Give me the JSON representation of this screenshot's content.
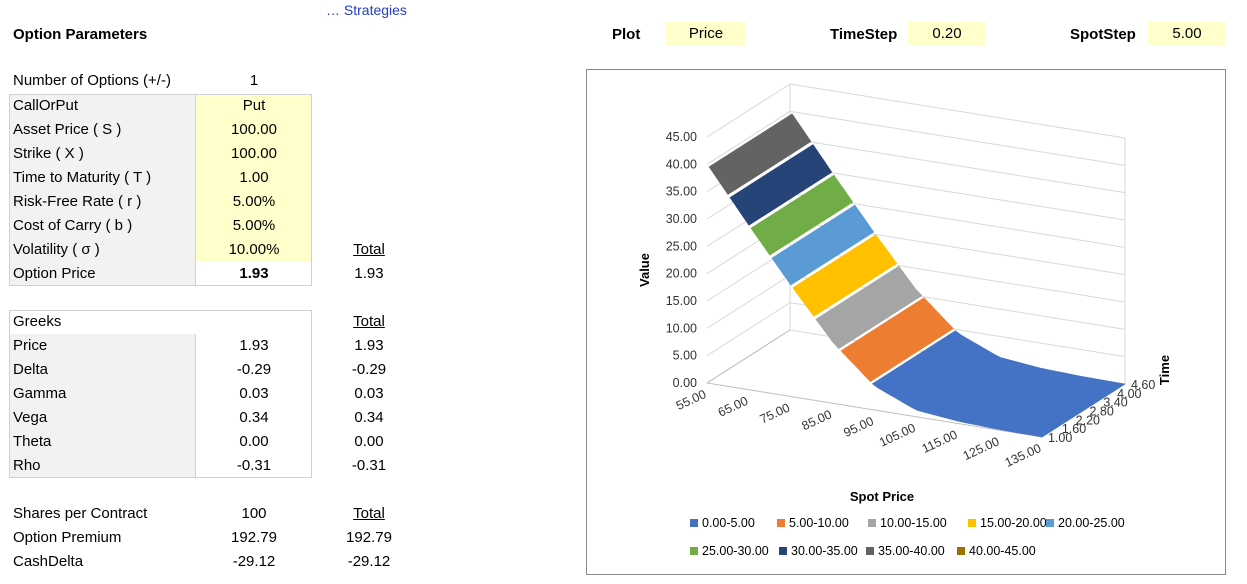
{
  "strategies_link": "… Strategies",
  "section_title": "Option Parameters",
  "header": {
    "plot_label": "Plot",
    "plot_value": "Price",
    "timestep_label": "TimeStep",
    "timestep_value": "0.20",
    "spotstep_label": "SpotStep",
    "spotstep_value": "5.00"
  },
  "params": {
    "num_options_label": "Number of Options (+/-)",
    "num_options_value": "1",
    "rows": [
      {
        "label": "CallOrPut",
        "value": "Put"
      },
      {
        "label": "Asset Price ( S )",
        "value": "100.00"
      },
      {
        "label": "Strike ( X )",
        "value": "100.00"
      },
      {
        "label": "Time to Maturity ( T )",
        "value": "1.00"
      },
      {
        "label": "Risk-Free Rate ( r )",
        "value": "5.00%"
      },
      {
        "label": "Cost of Carry ( b )",
        "value": "5.00%"
      },
      {
        "label": "Volatility ( σ )",
        "value": "10.00%"
      }
    ],
    "total_header": "Total",
    "option_price_label": "Option Price",
    "option_price_value": "1.93",
    "option_price_total": "1.93"
  },
  "greeks": {
    "title": "Greeks",
    "total_header": "Total",
    "rows": [
      {
        "label": "Price",
        "value": "1.93",
        "total": "1.93"
      },
      {
        "label": "Delta",
        "value": "-0.29",
        "total": "-0.29"
      },
      {
        "label": "Gamma",
        "value": "0.03",
        "total": "0.03"
      },
      {
        "label": "Vega",
        "value": "0.34",
        "total": "0.34"
      },
      {
        "label": "Theta",
        "value": "0.00",
        "total": "0.00"
      },
      {
        "label": "Rho",
        "value": "-0.31",
        "total": "-0.31"
      }
    ]
  },
  "contract": {
    "total_header": "Total",
    "rows": [
      {
        "label": "Shares per Contract",
        "value": "100",
        "total": ""
      },
      {
        "label": "Option Premium",
        "value": "192.79",
        "total": "192.79"
      },
      {
        "label": "CashDelta",
        "value": "-29.12",
        "total": "-29.12"
      }
    ]
  },
  "chart_data": {
    "type": "surface",
    "xlabel": "Spot Price",
    "ylabel": "Value",
    "zlabel": "Time",
    "x_ticks": [
      "55.00",
      "65.00",
      "75.00",
      "85.00",
      "95.00",
      "105.00",
      "115.00",
      "125.00",
      "135.00"
    ],
    "y_ticks": [
      "0.00",
      "5.00",
      "10.00",
      "15.00",
      "20.00",
      "25.00",
      "30.00",
      "35.00",
      "40.00",
      "45.00"
    ],
    "z_ticks": [
      "1.00",
      "1.60",
      "2.20",
      "2.80",
      "3.40",
      "4.00",
      "4.60"
    ],
    "ylim": [
      0,
      45
    ],
    "put_value_by_spot": {
      "spot": [
        55,
        65,
        75,
        85,
        95,
        105,
        115,
        125,
        135
      ],
      "value": [
        40.1,
        30.1,
        20.4,
        11.2,
        4.4,
        1.2,
        0.4,
        0.1,
        0.0
      ]
    },
    "legend": [
      {
        "label": "0.00-5.00",
        "color": "#4472c4"
      },
      {
        "label": "5.00-10.00",
        "color": "#ed7d31"
      },
      {
        "label": "10.00-15.00",
        "color": "#a5a5a5"
      },
      {
        "label": "15.00-20.00",
        "color": "#ffc000"
      },
      {
        "label": "20.00-25.00",
        "color": "#5b9bd5"
      },
      {
        "label": "25.00-30.00",
        "color": "#70ad47"
      },
      {
        "label": "30.00-35.00",
        "color": "#264478"
      },
      {
        "label": "35.00-40.00",
        "color": "#636363"
      },
      {
        "label": "40.00-45.00",
        "color": "#997300"
      }
    ]
  }
}
